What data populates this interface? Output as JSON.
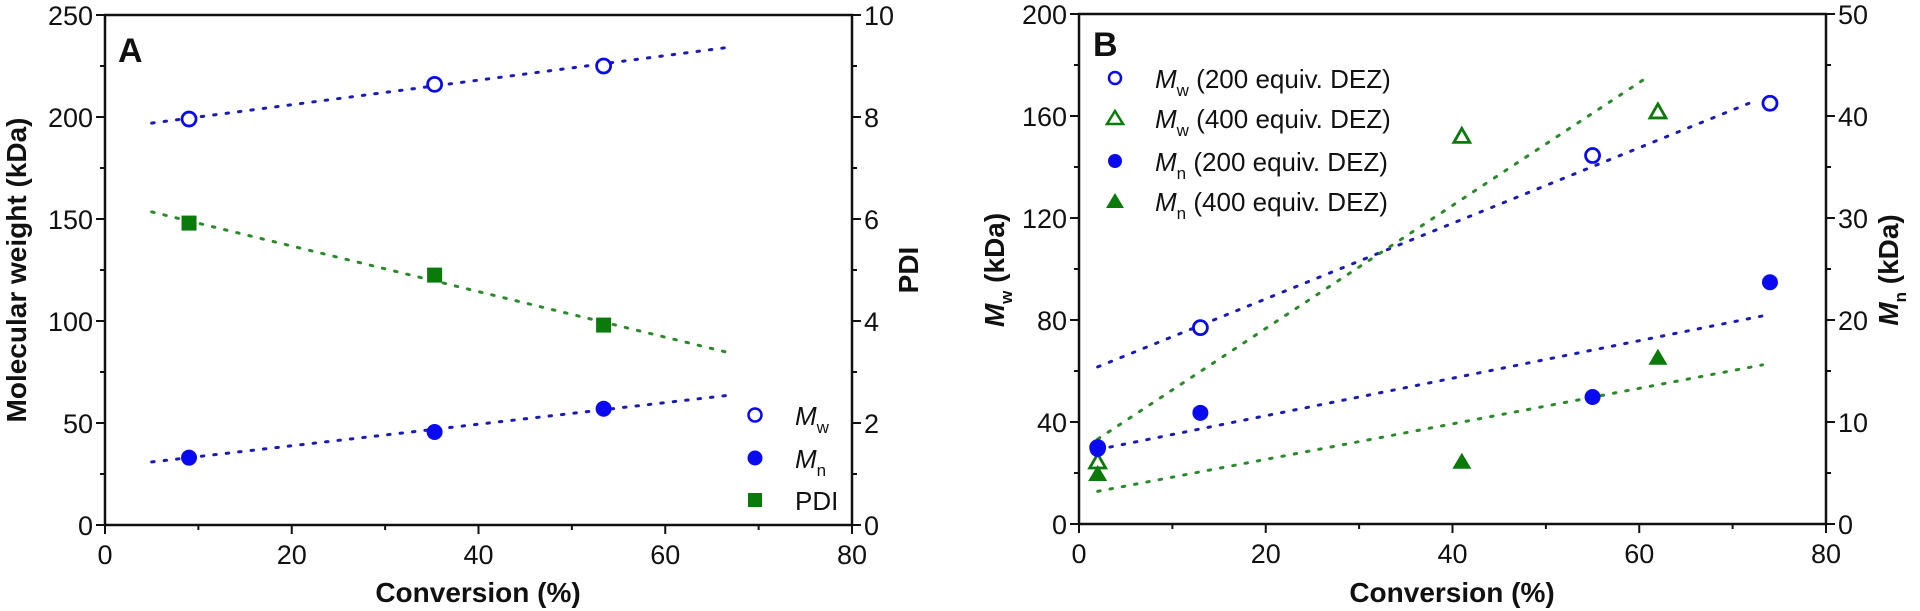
{
  "colors": {
    "blue": "#0a0af0",
    "green": "#0a7a0a",
    "axis": "#111111",
    "trend_blue": "#1a1ab4",
    "trend_green": "#2a8a2a"
  },
  "chart_data": [
    {
      "panel": "A",
      "type": "scatter",
      "panel_label": "A",
      "xlabel": "Conversion (%)",
      "ylabel": "Molecular weight (kDa)",
      "y2label": "PDI",
      "xlim": [
        0,
        80
      ],
      "ylim": [
        0,
        250
      ],
      "y2lim": [
        0,
        10
      ],
      "xticks": [
        0,
        20,
        40,
        60,
        80
      ],
      "yticks": [
        0,
        50,
        100,
        150,
        200,
        250
      ],
      "y2ticks": [
        0,
        2,
        4,
        6,
        8,
        10
      ],
      "legend_position": "bottom-right",
      "series": [
        {
          "name": "Mw",
          "name_main": "M",
          "name_sub": "w",
          "axis": "left",
          "marker": "circle-open",
          "color": "blue",
          "x": [
            9,
            35.3,
            53.4
          ],
          "y": [
            199,
            216,
            225
          ],
          "trend": {
            "x": [
              5,
              67
            ],
            "y": [
              197,
              234.3
            ],
            "color": "trend_blue"
          }
        },
        {
          "name": "Mn",
          "name_main": "M",
          "name_sub": "n",
          "axis": "left",
          "marker": "circle-filled",
          "color": "blue",
          "x": [
            9,
            35.3,
            53.4
          ],
          "y": [
            33,
            45.6,
            57
          ],
          "trend": {
            "x": [
              5,
              67
            ],
            "y": [
              30.9,
              63.7
            ],
            "color": "trend_blue"
          }
        },
        {
          "name": "PDI",
          "name_main": "PDI",
          "name_sub": "",
          "axis": "right",
          "marker": "square-filled",
          "color": "green",
          "x": [
            9,
            35.3,
            53.4
          ],
          "y": [
            5.92,
            4.9,
            3.92
          ],
          "trend": {
            "x": [
              5,
              67
            ],
            "y": [
              6.14,
              3.37
            ],
            "color": "trend_green"
          }
        }
      ]
    },
    {
      "panel": "B",
      "type": "scatter",
      "panel_label": "B",
      "xlabel": "Conversion (%)",
      "ylabel_main": "M",
      "ylabel_sub": "w",
      "ylabel_rest": " (kDa)",
      "y2label_main": "M",
      "y2label_sub": "n",
      "y2label_rest": " (kDa)",
      "xlim": [
        0,
        80
      ],
      "ylim": [
        0,
        200
      ],
      "y2lim": [
        0,
        50
      ],
      "xticks": [
        0,
        20,
        40,
        60,
        80
      ],
      "yticks": [
        0,
        40,
        80,
        120,
        160,
        200
      ],
      "y2ticks": [
        0,
        10,
        20,
        30,
        40,
        50
      ],
      "legend_position": "top-left",
      "series": [
        {
          "name": "Mw (200 equiv. DEZ)",
          "name_main": "M",
          "name_sub": "w",
          "name_rest": " (200 equiv. DEZ)",
          "axis": "left",
          "marker": "circle-open",
          "color": "blue",
          "x": [
            2,
            13,
            55,
            74
          ],
          "y": [
            30,
            77,
            144.5,
            165
          ],
          "trend": {
            "x": [
              2,
              72.1
            ],
            "y": [
              61.6,
              165.5
            ],
            "color": "trend_blue"
          }
        },
        {
          "name": "Mw (400 equiv. DEZ)",
          "name_main": "M",
          "name_sub": "w",
          "name_rest": " (400 equiv. DEZ)",
          "axis": "left",
          "marker": "triangle-open",
          "color": "green",
          "x": [
            2,
            41,
            62
          ],
          "y": [
            24.3,
            152,
            161.6
          ],
          "trend": {
            "x": [
              2,
              60.9
            ],
            "y": [
              33.3,
              175.3
            ],
            "color": "trend_green"
          }
        },
        {
          "name": "Mn (200 equiv. DEZ)",
          "name_main": "M",
          "name_sub": "n",
          "name_rest": " (200 equiv. DEZ)",
          "axis": "right",
          "marker": "circle-filled",
          "color": "blue",
          "x": [
            2,
            13,
            55,
            74
          ],
          "y": [
            7.35,
            10.9,
            12.45,
            23.7
          ],
          "trend": {
            "x": [
              2,
              73.2
            ],
            "y": [
              7.3,
              20.4
            ],
            "color": "trend_blue"
          }
        },
        {
          "name": "Mn (400 equiv. DEZ)",
          "name_main": "M",
          "name_sub": "n",
          "name_rest": " (400 equiv. DEZ)",
          "axis": "right",
          "marker": "triangle-filled",
          "color": "green",
          "x": [
            2,
            41,
            62
          ],
          "y": [
            4.9,
            6.1,
            16.3
          ],
          "trend": {
            "x": [
              2,
              73.2
            ],
            "y": [
              3.2,
              15.6
            ],
            "color": "trend_green"
          }
        }
      ]
    }
  ]
}
